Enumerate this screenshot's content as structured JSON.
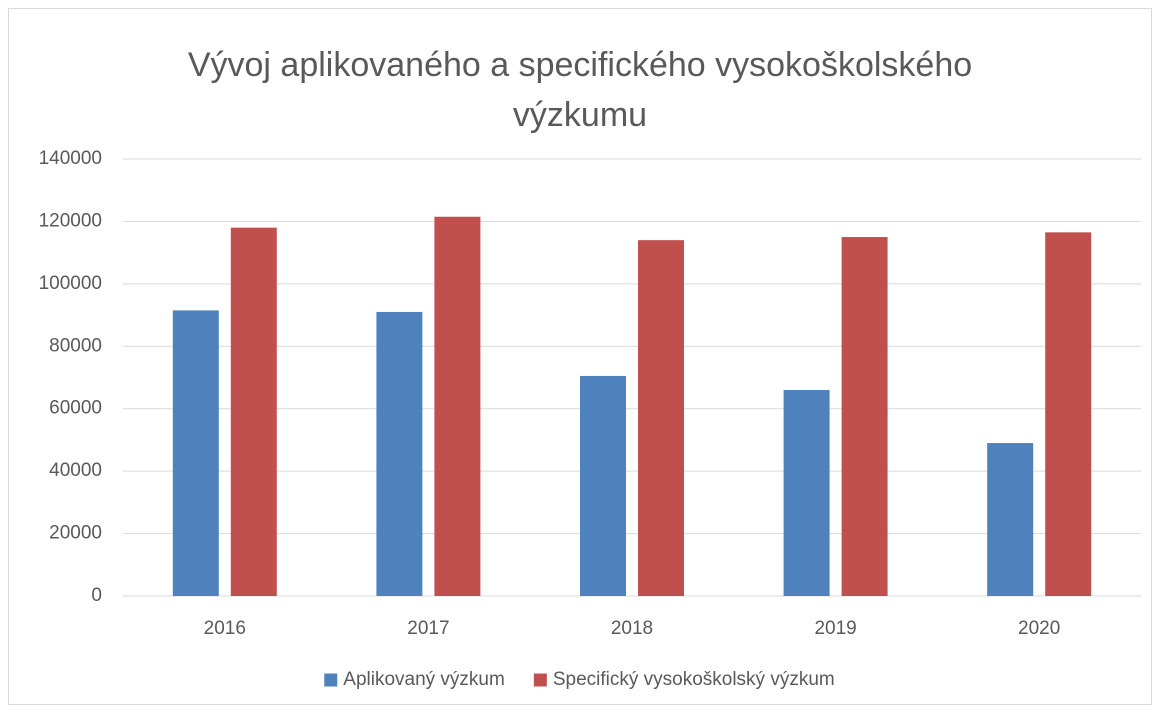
{
  "chart_data": {
    "type": "bar",
    "title": "Vývoj aplikovaného a specifického vysokoškolského výzkumu",
    "categories": [
      "2016",
      "2017",
      "2018",
      "2019",
      "2020"
    ],
    "series": [
      {
        "name": "Aplikovaný výzkum",
        "color": "#4f81bd",
        "values": [
          91500,
          91000,
          70500,
          66000,
          49000
        ]
      },
      {
        "name": "Specifický vysokoškolský výzkum",
        "color": "#c0504d",
        "values": [
          118000,
          121500,
          114000,
          115000,
          116500
        ]
      }
    ],
    "ylim": [
      0,
      140000
    ],
    "yticks": [
      0,
      20000,
      40000,
      60000,
      80000,
      100000,
      120000,
      140000
    ],
    "grid": true,
    "legend": "bottom"
  }
}
